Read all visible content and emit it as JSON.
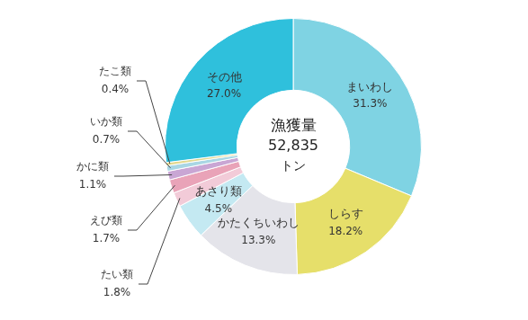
{
  "chart_data": {
    "type": "doughnut",
    "center_label": {
      "title": "漁獲量",
      "value": 52835,
      "label": "52,835",
      "unit": "トン"
    },
    "categories": [
      "まいわし",
      "しらす",
      "かたくちいわし",
      "あさり類",
      "たい類",
      "えび類",
      "かに類",
      "いか類",
      "たこ類",
      "その他"
    ],
    "values": [
      31.3,
      18.2,
      13.3,
      4.5,
      1.8,
      1.7,
      1.1,
      0.7,
      0.4,
      27.0
    ],
    "value_labels": [
      "31.3%",
      "18.2%",
      "13.3%",
      "4.5%",
      "1.8%",
      "1.7%",
      "1.1%",
      "0.7%",
      "0.4%",
      "27.0%"
    ],
    "colors": [
      "#7fd3e3",
      "#e6df6a",
      "#e4e4ea",
      "#c4e9f2",
      "#f2cbd8",
      "#e9a3b8",
      "#c9a6d4",
      "#a9d6e4",
      "#e2d88e",
      "#2fc0dc"
    ],
    "data_labels": true
  }
}
